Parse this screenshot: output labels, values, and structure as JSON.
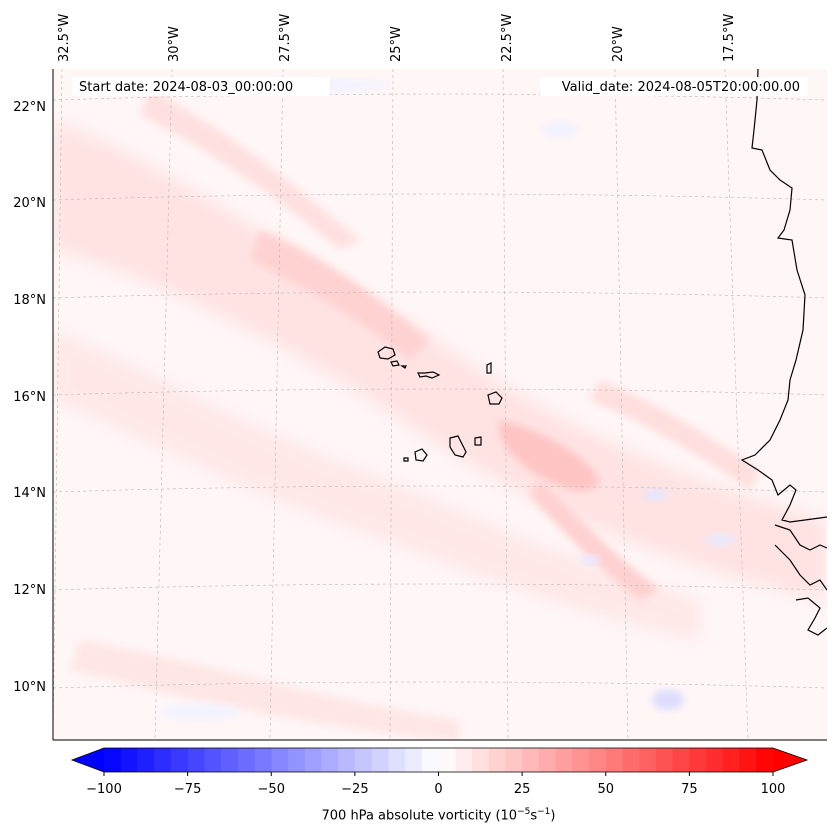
{
  "map": {
    "start_date": "Start date: 2024-08-03_00:00:00",
    "valid_date": "Valid_date: 2024-08-05T20:00:00.00",
    "lon_labels": [
      "32.5°W",
      "30°W",
      "27.5°W",
      "25°W",
      "22.5°W",
      "20°W",
      "17.5°W"
    ],
    "lat_labels": [
      "22°N",
      "20°N",
      "18°N",
      "16°N",
      "14°N",
      "12°N",
      "10°N"
    ],
    "features": [
      "coastline",
      "cape-verde-islands",
      "west-africa-coast",
      "gridlines"
    ]
  },
  "colorbar": {
    "ticks": [
      "−100",
      "−75",
      "−50",
      "−25",
      "0",
      "25",
      "50",
      "75",
      "100"
    ],
    "label_text": "700 hPa absolute vorticity (10",
    "label_exp1": "−5",
    "label_mid": "s",
    "label_exp2": "−1",
    "label_end": ")",
    "cmap": "bwr",
    "min": -100,
    "max": 100,
    "levels": 40,
    "color_min": "#0000ff",
    "color_mid": "#ffffff",
    "color_max": "#ff0000"
  }
}
